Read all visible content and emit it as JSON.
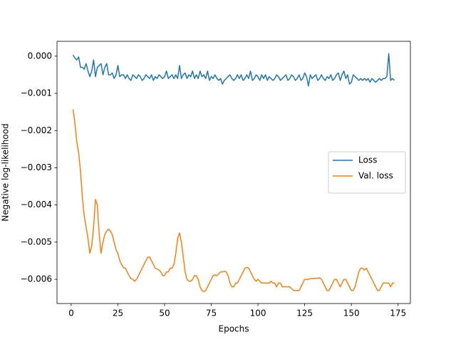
{
  "chart_data": {
    "type": "line",
    "xlabel": "Epochs",
    "ylabel": "Negative log-likelihood",
    "x": [
      1,
      2,
      3,
      4,
      5,
      6,
      7,
      8,
      9,
      10,
      11,
      12,
      13,
      14,
      15,
      16,
      17,
      18,
      19,
      20,
      21,
      22,
      23,
      24,
      25,
      26,
      27,
      28,
      29,
      30,
      31,
      32,
      33,
      34,
      35,
      36,
      37,
      38,
      39,
      40,
      41,
      42,
      43,
      44,
      45,
      46,
      47,
      48,
      49,
      50,
      51,
      52,
      53,
      54,
      55,
      56,
      57,
      58,
      59,
      60,
      61,
      62,
      63,
      64,
      65,
      66,
      67,
      68,
      69,
      70,
      71,
      72,
      73,
      74,
      75,
      76,
      77,
      78,
      79,
      80,
      81,
      82,
      83,
      84,
      85,
      86,
      87,
      88,
      89,
      90,
      91,
      92,
      93,
      94,
      95,
      96,
      97,
      98,
      99,
      100,
      101,
      102,
      103,
      104,
      105,
      106,
      107,
      108,
      109,
      110,
      111,
      112,
      113,
      114,
      115,
      116,
      117,
      118,
      119,
      120,
      121,
      122,
      123,
      124,
      125,
      126,
      127,
      128,
      129,
      130,
      131,
      132,
      133,
      134,
      135,
      136,
      137,
      138,
      139,
      140,
      141,
      142,
      143,
      144,
      145,
      146,
      147,
      148,
      149,
      150,
      151,
      152,
      153,
      154,
      155,
      156,
      157,
      158,
      159,
      160,
      161,
      162,
      163,
      164,
      165,
      166,
      167,
      168,
      169,
      170,
      171,
      172,
      173
    ],
    "series": [
      {
        "name": "Loss",
        "color": "#1f77b4",
        "values": [
          3e-05,
          -5e-05,
          -0.0001,
          -2e-05,
          -0.0003,
          -0.0003,
          -0.00035,
          -0.0002,
          -0.0004,
          -0.00055,
          -0.0004,
          -0.0001,
          -0.00055,
          -0.0003,
          -0.00025,
          -0.0002,
          -0.0005,
          -0.0003,
          -0.0002,
          -0.0005,
          -0.0005,
          -0.00045,
          -0.0006,
          -0.0005,
          -0.00025,
          -0.00055,
          -0.0005,
          -0.0005,
          -0.0006,
          -0.0005,
          -0.0006,
          -0.00065,
          -0.0005,
          -0.00055,
          -0.0006,
          -0.0005,
          -0.00055,
          -0.00065,
          -0.0006,
          -0.0005,
          -0.00055,
          -0.0006,
          -0.0005,
          -0.00065,
          -0.00055,
          -0.0006,
          -0.0005,
          -0.00055,
          -0.0006,
          -0.00055,
          -0.0004,
          -0.0006,
          -0.00055,
          -0.0005,
          -0.0006,
          -0.0005,
          -0.0006,
          -0.00025,
          -0.0006,
          -0.0005,
          -0.00045,
          -0.0006,
          -0.0005,
          -0.00055,
          -0.0004,
          -0.0006,
          -0.0005,
          -0.0006,
          -0.0004,
          -0.00055,
          -0.0005,
          -0.0006,
          -0.0004,
          -0.00065,
          -0.00055,
          -0.0006,
          -0.0005,
          -0.0006,
          -0.00065,
          -0.0006,
          -0.00075,
          -0.00065,
          -0.0006,
          -0.00055,
          -0.0005,
          -0.0006,
          -0.00065,
          -0.0006,
          -0.0005,
          -0.0006,
          -0.0005,
          -0.00065,
          -0.0006,
          -0.0005,
          -0.0006,
          -0.0004,
          -0.00065,
          -0.0006,
          -0.0005,
          -0.00055,
          -0.00065,
          -0.0005,
          -0.0006,
          -0.0005,
          -0.00065,
          -0.00055,
          -0.0006,
          -0.00065,
          -0.0006,
          -0.0005,
          -0.00055,
          -0.00065,
          -0.0006,
          -0.00055,
          -0.0005,
          -0.00065,
          -0.0006,
          -0.0005,
          -0.00055,
          -0.00065,
          -0.0006,
          -0.0005,
          -0.00065,
          -0.0006,
          -0.00045,
          -0.00055,
          -0.0008,
          -0.0005,
          -0.0006,
          -0.00055,
          -0.0005,
          -0.00065,
          -0.0006,
          -0.0005,
          -0.0006,
          -0.00065,
          -0.00055,
          -0.0006,
          -0.0005,
          -0.00065,
          -0.0006,
          -0.0005,
          -0.00045,
          -0.00065,
          -0.0005,
          -0.0004,
          -0.0006,
          -0.0005,
          -0.00075,
          -0.0007,
          -0.0005,
          -0.00055,
          -0.0006,
          -0.00065,
          -0.0006,
          -0.00065,
          -0.0006,
          -0.00065,
          -0.0006,
          -0.0007,
          -0.0006,
          -0.00065,
          -0.0007,
          -0.00065,
          -0.0006,
          -0.00065,
          -0.0006,
          -0.0006,
          -0.00055,
          7e-05,
          -0.00065,
          -0.0006,
          -0.00065
        ]
      },
      {
        "name": "Val. loss",
        "color": "#ff7f0e",
        "values": [
          -0.00143,
          -0.0018,
          -0.0023,
          -0.0026,
          -0.0031,
          -0.0038,
          -0.0043,
          -0.0046,
          -0.0049,
          -0.0053,
          -0.0051,
          -0.0046,
          -0.00385,
          -0.004,
          -0.0048,
          -0.0053,
          -0.005,
          -0.0048,
          -0.0047,
          -0.00465,
          -0.0047,
          -0.0048,
          -0.005,
          -0.0052,
          -0.0053,
          -0.0055,
          -0.0056,
          -0.00568,
          -0.0057,
          -0.0058,
          -0.0059,
          -0.00598,
          -0.006,
          -0.00605,
          -0.006,
          -0.0059,
          -0.0058,
          -0.0057,
          -0.0056,
          -0.0055,
          -0.0054,
          -0.0054,
          -0.0055,
          -0.0056,
          -0.0057,
          -0.00572,
          -0.00575,
          -0.0058,
          -0.0059,
          -0.0059,
          -0.0058,
          -0.0058,
          -0.0057,
          -0.0057,
          -0.0056,
          -0.0053,
          -0.0049,
          -0.00475,
          -0.005,
          -0.0054,
          -0.0058,
          -0.006,
          -0.00605,
          -0.00605,
          -0.006,
          -0.0059,
          -0.0059,
          -0.006,
          -0.0062,
          -0.0063,
          -0.00633,
          -0.0063,
          -0.0062,
          -0.0061,
          -0.006,
          -0.0059,
          -0.00588,
          -0.0059,
          -0.00585,
          -0.0058,
          -0.0058,
          -0.00578,
          -0.0058,
          -0.0059,
          -0.0061,
          -0.0062,
          -0.0062,
          -0.0061,
          -0.0061,
          -0.006,
          -0.0059,
          -0.0058,
          -0.0057,
          -0.00568,
          -0.0057,
          -0.0058,
          -0.0059,
          -0.006,
          -0.00605,
          -0.006,
          -0.00605,
          -0.0061,
          -0.0061,
          -0.0061,
          -0.0061,
          -0.0061,
          -0.00605,
          -0.0061,
          -0.0061,
          -0.0062,
          -0.0061,
          -0.0061,
          -0.0062,
          -0.0062,
          -0.0062,
          -0.0062,
          -0.0062,
          -0.00625,
          -0.0063,
          -0.0063,
          -0.0063,
          -0.0063,
          -0.0062,
          -0.0061,
          -0.006,
          -0.006,
          -0.006,
          -0.00598,
          -0.00598,
          -0.00598,
          -0.00597,
          -0.00597,
          -0.00596,
          -0.006,
          -0.0061,
          -0.0062,
          -0.0063,
          -0.0063,
          -0.0062,
          -0.0061,
          -0.006,
          -0.006,
          -0.0061,
          -0.0062,
          -0.0061,
          -0.006,
          -0.006,
          -0.0061,
          -0.0062,
          -0.0063,
          -0.0063,
          -0.0062,
          -0.006,
          -0.0058,
          -0.0057,
          -0.0057,
          -0.00575,
          -0.0057,
          -0.0058,
          -0.0059,
          -0.006,
          -0.0061,
          -0.0062,
          -0.0063,
          -0.0063,
          -0.0062,
          -0.0061,
          -0.0061,
          -0.0061,
          -0.0061,
          -0.0062,
          -0.0061,
          -0.0061
        ]
      }
    ],
    "xlim": [
      -7.6,
      181.6
    ],
    "xticks": [
      0,
      25,
      50,
      75,
      100,
      125,
      150,
      175
    ],
    "ylim": [
      -0.00665,
      0.0004
    ],
    "yticks": [
      {
        "value": 0,
        "label": "0.000"
      },
      {
        "value": -0.001,
        "label": "−0.001"
      },
      {
        "value": -0.002,
        "label": "−0.002"
      },
      {
        "value": -0.003,
        "label": "−0.003"
      },
      {
        "value": -0.004,
        "label": "−0.004"
      },
      {
        "value": -0.005,
        "label": "−0.005"
      },
      {
        "value": -0.006,
        "label": "−0.006"
      }
    ],
    "grid": false,
    "legend": "center right"
  }
}
